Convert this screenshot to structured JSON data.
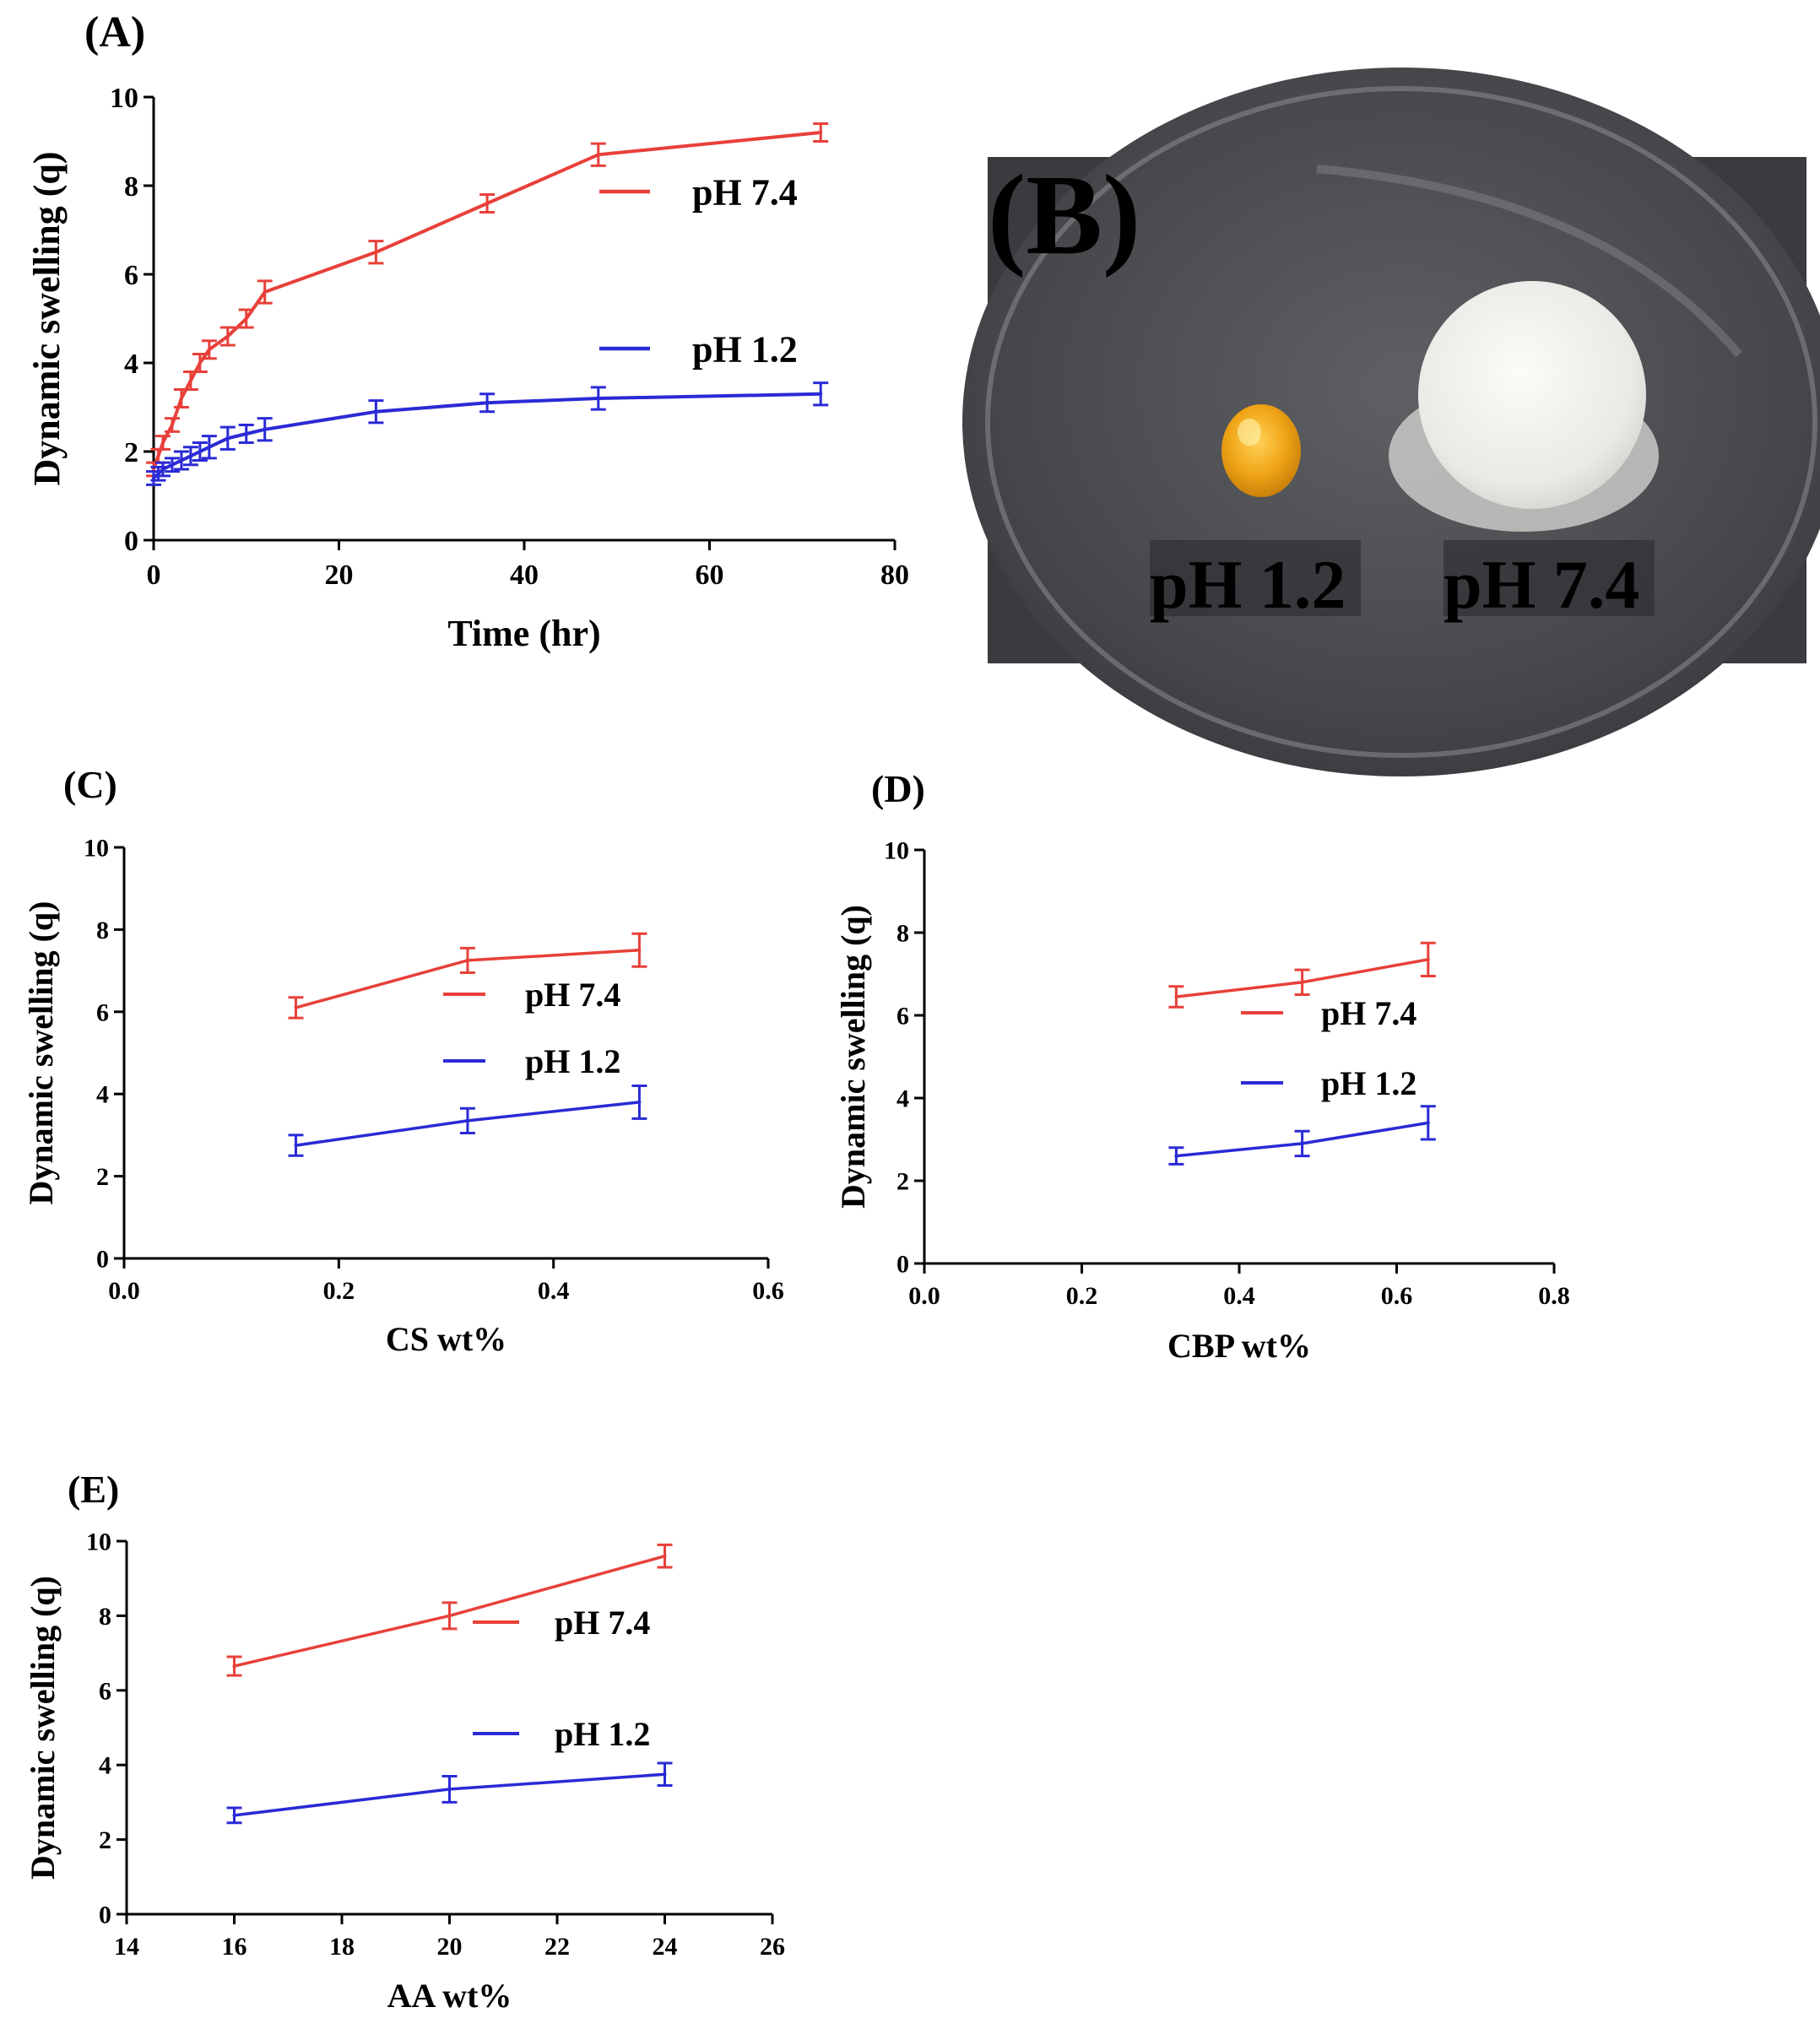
{
  "colors": {
    "red": "#e8403a",
    "blue": "#2a2ad6",
    "axis": "#000000"
  },
  "chart_data": [
    {
      "id": "A",
      "panel_label": "(A)",
      "type": "line",
      "xlabel": "Time (hr)",
      "ylabel": "Dynamic swelling (q)",
      "xlim": [
        0,
        80
      ],
      "ylim": [
        0,
        10
      ],
      "xticks": [
        "0",
        "20",
        "40",
        "60",
        "80"
      ],
      "yticks": [
        "0",
        "2",
        "4",
        "6",
        "8",
        "10"
      ],
      "legend_position": "right",
      "series": [
        {
          "name": "pH 7.4",
          "color": "#e8403a",
          "x": [
            0,
            0.5,
            1,
            2,
            3,
            4,
            5,
            6,
            8,
            10,
            12,
            24,
            36,
            48,
            72
          ],
          "y": [
            1.6,
            1.9,
            2.2,
            2.6,
            3.2,
            3.6,
            4.0,
            4.3,
            4.6,
            5.0,
            5.6,
            6.5,
            7.6,
            8.7,
            9.2
          ],
          "err": [
            0.15,
            0.15,
            0.15,
            0.15,
            0.2,
            0.2,
            0.2,
            0.2,
            0.2,
            0.2,
            0.25,
            0.25,
            0.2,
            0.25,
            0.2
          ]
        },
        {
          "name": "pH 1.2",
          "color": "#2a2ad6",
          "x": [
            0,
            0.5,
            1,
            2,
            3,
            4,
            5,
            6,
            8,
            10,
            12,
            24,
            36,
            48,
            72
          ],
          "y": [
            1.4,
            1.5,
            1.6,
            1.7,
            1.8,
            1.9,
            2.0,
            2.1,
            2.3,
            2.4,
            2.5,
            2.9,
            3.1,
            3.2,
            3.3
          ],
          "err": [
            0.15,
            0.15,
            0.15,
            0.15,
            0.2,
            0.2,
            0.2,
            0.25,
            0.25,
            0.2,
            0.25,
            0.25,
            0.2,
            0.25,
            0.25
          ]
        }
      ]
    },
    {
      "id": "C",
      "panel_label": "(C)",
      "type": "line",
      "xlabel": "CS wt%",
      "ylabel": "Dynamic swelling (q)",
      "xlim": [
        0,
        0.6
      ],
      "ylim": [
        0,
        10
      ],
      "xticks": [
        "0.0",
        "0.2",
        "0.4",
        "0.6"
      ],
      "yticks": [
        "0",
        "2",
        "4",
        "6",
        "8",
        "10"
      ],
      "legend_position": "right",
      "series": [
        {
          "name": "pH 7.4",
          "color": "#e8403a",
          "x": [
            0.16,
            0.32,
            0.48
          ],
          "y": [
            6.1,
            7.25,
            7.5
          ],
          "err": [
            0.25,
            0.3,
            0.4
          ]
        },
        {
          "name": "pH 1.2",
          "color": "#2a2ad6",
          "x": [
            0.16,
            0.32,
            0.48
          ],
          "y": [
            2.75,
            3.35,
            3.8
          ],
          "err": [
            0.25,
            0.3,
            0.4
          ]
        }
      ]
    },
    {
      "id": "D",
      "panel_label": "(D)",
      "type": "line",
      "xlabel": "CBP wt%",
      "ylabel": "Dynamic swelling (q)",
      "xlim": [
        0,
        0.8
      ],
      "ylim": [
        0,
        10
      ],
      "xticks": [
        "0.0",
        "0.2",
        "0.4",
        "0.6",
        "0.8"
      ],
      "yticks": [
        "0",
        "2",
        "4",
        "6",
        "8",
        "10"
      ],
      "legend_position": "right",
      "series": [
        {
          "name": "pH 7.4",
          "color": "#e8403a",
          "x": [
            0.32,
            0.48,
            0.64
          ],
          "y": [
            6.45,
            6.8,
            7.35
          ],
          "err": [
            0.25,
            0.3,
            0.4
          ]
        },
        {
          "name": "pH 1.2",
          "color": "#2a2ad6",
          "x": [
            0.32,
            0.48,
            0.64
          ],
          "y": [
            2.6,
            2.9,
            3.4
          ],
          "err": [
            0.2,
            0.3,
            0.4
          ]
        }
      ]
    },
    {
      "id": "E",
      "panel_label": "(E)",
      "type": "line",
      "xlabel": "AA wt%",
      "ylabel": "Dynamic swelling (q)",
      "xlim": [
        14,
        26
      ],
      "ylim": [
        0,
        10
      ],
      "xticks": [
        "14",
        "16",
        "18",
        "20",
        "22",
        "24",
        "26"
      ],
      "yticks": [
        "0",
        "2",
        "4",
        "6",
        "8",
        "10"
      ],
      "legend_position": "right",
      "series": [
        {
          "name": "pH 7.4",
          "color": "#e8403a",
          "x": [
            16,
            20,
            24
          ],
          "y": [
            6.65,
            8.0,
            9.6
          ],
          "err": [
            0.25,
            0.35,
            0.3
          ]
        },
        {
          "name": "pH 1.2",
          "color": "#2a2ad6",
          "x": [
            16,
            20,
            24
          ],
          "y": [
            2.65,
            3.35,
            3.75
          ],
          "err": [
            0.2,
            0.35,
            0.3
          ]
        }
      ]
    }
  ],
  "photo": {
    "panel_label": "(B)",
    "labels": [
      "pH 1.2",
      "pH 7.4"
    ]
  }
}
